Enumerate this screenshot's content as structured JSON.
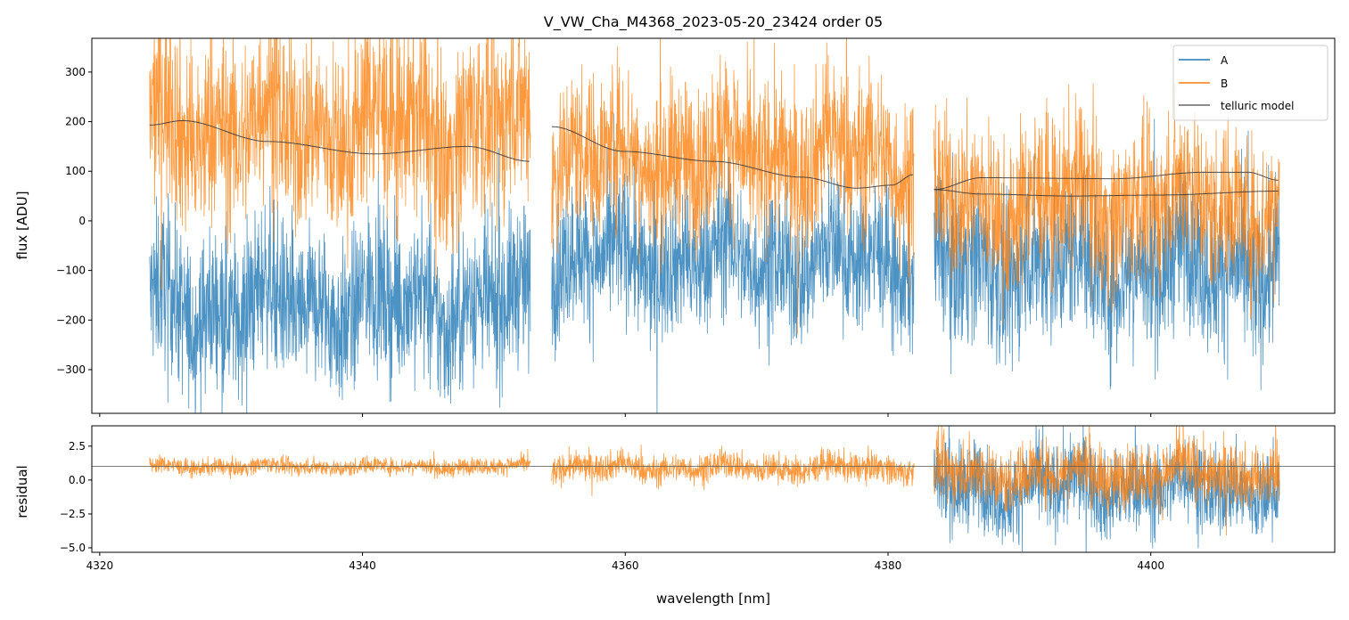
{
  "chart_data": {
    "type": "line",
    "title": "V_VW_Cha_M4368_2023-05-20_23424  order 05",
    "xlabel": "wavelength [nm]",
    "xlim": [
      4319.4,
      4414.0
    ],
    "xticks": [
      "4320",
      "4340",
      "4360",
      "4380",
      "4400"
    ],
    "xtick_values": [
      4320,
      4340,
      4360,
      4380,
      4400
    ],
    "legend": {
      "placement": "top-right",
      "entries": [
        "A",
        "B",
        "telluric model"
      ]
    },
    "colors": {
      "A": "#1f77b4",
      "B": "#ff7f0e",
      "telluric": "#333333"
    },
    "segments": [
      [
        4323.8,
        4352.8
      ],
      [
        4354.4,
        4382.0
      ],
      [
        4383.5,
        4409.8
      ]
    ],
    "panels": [
      {
        "name": "flux",
        "ylabel": "flux [ADU]",
        "ylim": [
          -388,
          368
        ],
        "yticks": [
          "−300",
          "−200",
          "−100",
          "0",
          "100",
          "200",
          "300"
        ],
        "ytick_values": [
          -300,
          -200,
          -100,
          0,
          100,
          200,
          300
        ],
        "series": [
          {
            "name": "A",
            "segment_mean": [
              -170,
              -80,
              -90
            ],
            "segment_noise": [
              90,
              80,
              90
            ]
          },
          {
            "name": "B",
            "segment_mean": [
              190,
              130,
              40
            ],
            "segment_noise": [
              110,
              90,
              90
            ]
          }
        ],
        "telluric_model": [
          {
            "x": [
              4323.8,
              4326.3,
              4332.8,
              4340.9,
              4348.0,
              4352.7
            ],
            "y": [
              193,
              202,
              160,
              135,
              150,
              120
            ]
          },
          {
            "x": [
              4354.4,
              4359.9,
              4366.7,
              4373.5,
              4377.6,
              4380.3,
              4381.9
            ],
            "y": [
              190,
              140,
              120,
              88,
              66,
              72,
              93
            ]
          },
          {
            "x": [
              4383.5,
              4387.1,
              4397.3,
              4404.0,
              4407.4,
              4409.7
            ],
            "y": [
              63,
              87,
              85,
              98,
              98,
              82
            ]
          },
          {
            "x": [
              4383.5,
              4387.1,
              4393.9,
              4400.7,
              4409.7
            ],
            "y": [
              63,
              54,
              50,
              52,
              60
            ]
          }
        ]
      },
      {
        "name": "residual",
        "ylabel": "residual",
        "ylim": [
          -5.33,
          4.0
        ],
        "yticks": [
          "−5.0",
          "−2.5",
          "0.0",
          "2.5"
        ],
        "ytick_values": [
          -5.0,
          -2.5,
          0.0,
          2.5
        ],
        "reference_line": 1.0,
        "series": [
          {
            "name": "A",
            "segment_mean": [
              null,
              null,
              -0.6
            ],
            "segment_noise": [
              0,
              0,
              1.8
            ]
          },
          {
            "name": "B",
            "segment_mean": [
              1.0,
              0.9,
              0.5
            ],
            "segment_noise": [
              0.35,
              0.6,
              1.3
            ]
          }
        ]
      }
    ]
  }
}
